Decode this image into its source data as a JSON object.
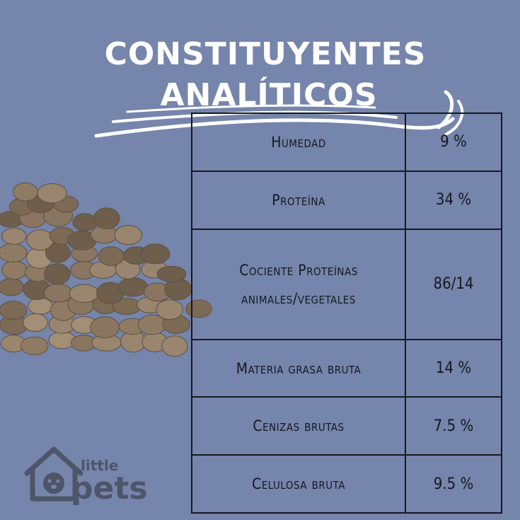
{
  "title": {
    "line1": "CONSTITUYENTES",
    "line2": "ANALÍTICOS"
  },
  "rows": [
    {
      "label": "Humedad",
      "value": "9 %"
    },
    {
      "label": "Proteína",
      "value": "34 %"
    },
    {
      "label": "Cociente Proteínas animales/vegetales",
      "value": "86/14"
    },
    {
      "label": "Materia grasa bruta",
      "value": "14 %"
    },
    {
      "label": "Cenizas brutas",
      "value": "7.5 %"
    },
    {
      "label": "Celulosa bruta",
      "value": "9.5 %"
    }
  ],
  "logo": {
    "line1": "little",
    "line2": "pets"
  },
  "colors": {
    "background": "#7585ab",
    "title": "#ffffff",
    "table_text": "#151820",
    "kibble": "#8a7660",
    "logo": "#4d5568"
  }
}
